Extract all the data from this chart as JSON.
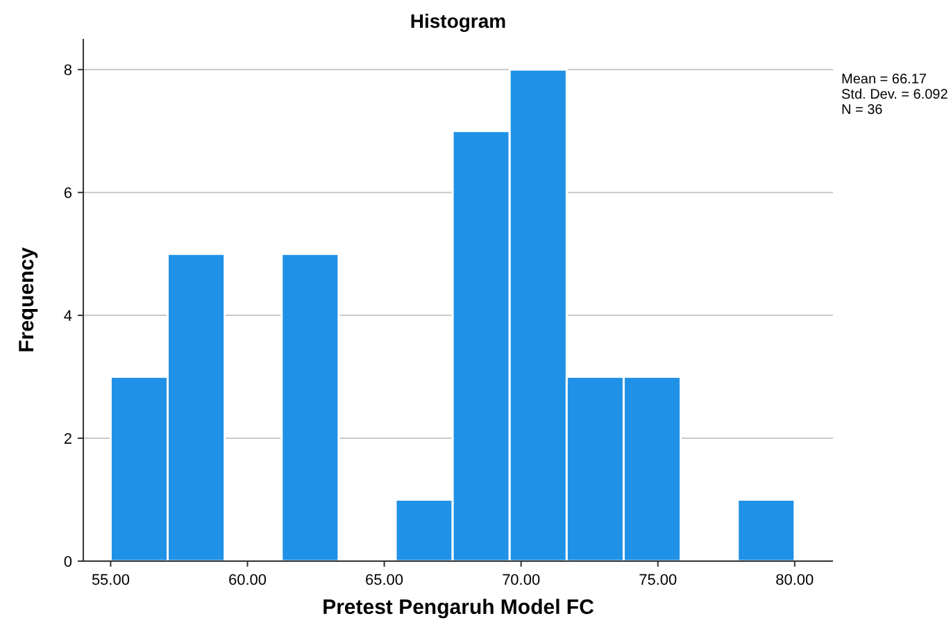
{
  "chart_data": {
    "type": "histogram",
    "title": "Histogram",
    "xlabel": "Pretest Pengaruh Model FC",
    "ylabel": "Frequency",
    "bins": [
      55,
      57.083,
      59.167,
      61.25,
      63.333,
      65.417,
      67.5,
      69.583,
      71.667,
      73.75,
      75.833,
      77.917,
      80
    ],
    "values": [
      3,
      5,
      0,
      5,
      0,
      1,
      7,
      8,
      3,
      3,
      0,
      1
    ],
    "color": "#1f91e6",
    "xlim": [
      54,
      81.4
    ],
    "xticks": [
      {
        "value": 55,
        "label": "55.00"
      },
      {
        "value": 60,
        "label": "60.00"
      },
      {
        "value": 65,
        "label": "65.00"
      },
      {
        "value": 70,
        "label": "70.00"
      },
      {
        "value": 75,
        "label": "75.00"
      },
      {
        "value": 80,
        "label": "80.00"
      }
    ],
    "ylim": [
      0,
      8.5
    ],
    "yticks": [
      0,
      2,
      4,
      6,
      8
    ],
    "grid": "y",
    "annotations": [
      "Mean = 66.17",
      "Std. Dev. = 6.092",
      "N = 36"
    ]
  }
}
